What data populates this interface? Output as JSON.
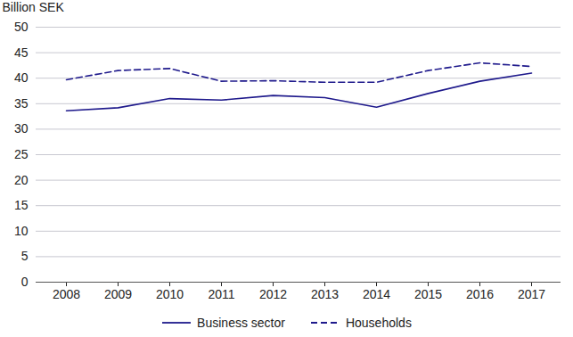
{
  "chart_data": {
    "type": "line",
    "y_label": "Billion SEK",
    "categories": [
      "2008",
      "2009",
      "2010",
      "2011",
      "2012",
      "2013",
      "2014",
      "2015",
      "2016",
      "2017"
    ],
    "series": [
      {
        "name": "Business sector",
        "color": "#1f1a8c",
        "line_style": "solid",
        "values": [
          33.6,
          34.2,
          36.0,
          35.7,
          36.6,
          36.2,
          34.3,
          37.0,
          39.4,
          41.0
        ]
      },
      {
        "name": "Households",
        "color": "#1f1a8c",
        "line_style": "dashed",
        "values": [
          39.7,
          41.5,
          41.9,
          39.4,
          39.5,
          39.2,
          39.2,
          41.5,
          43.0,
          42.3
        ]
      }
    ],
    "ylim": [
      0,
      50
    ],
    "yticks": [
      0,
      5,
      10,
      15,
      20,
      25,
      30,
      35,
      40,
      45,
      50
    ],
    "grid": true,
    "legend": "bottom"
  }
}
